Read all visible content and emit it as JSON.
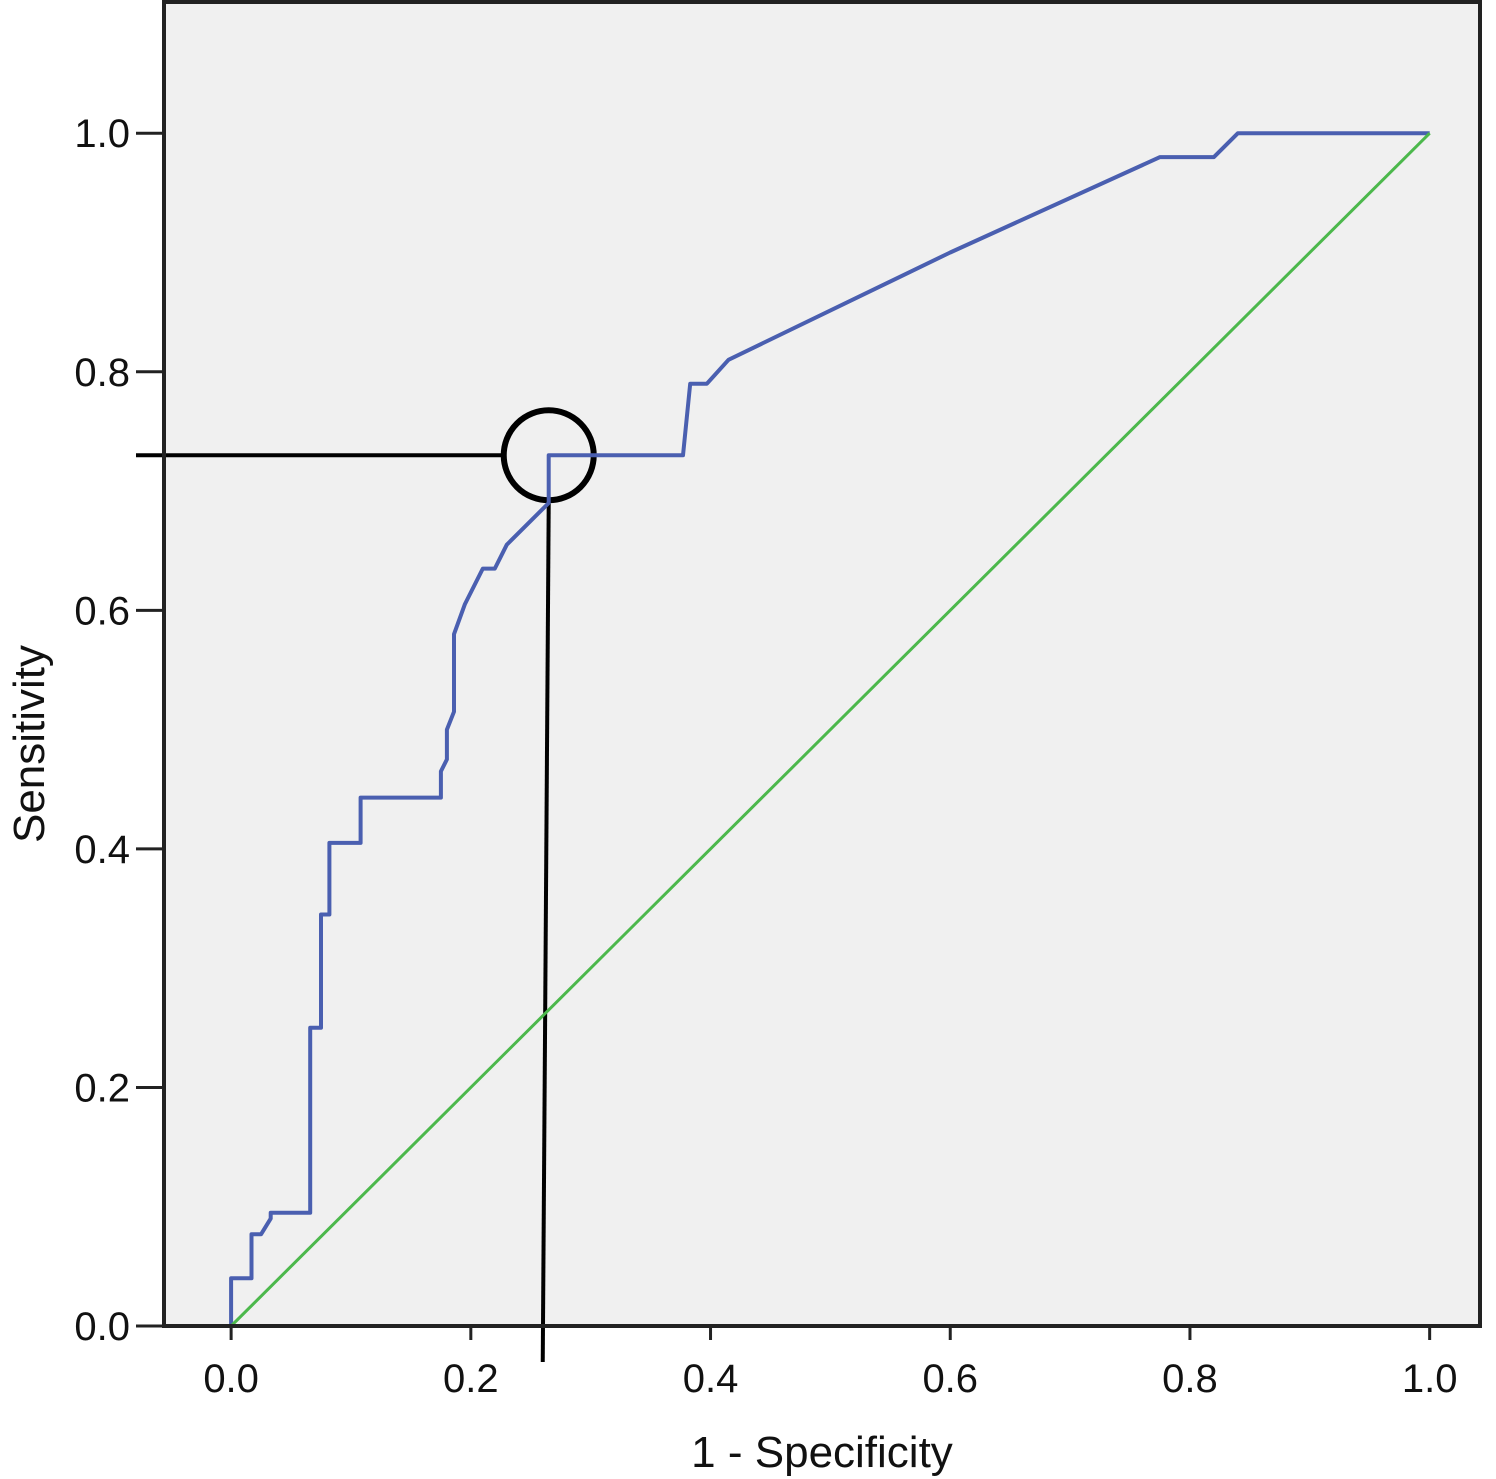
{
  "chart_data": {
    "type": "line",
    "title": "",
    "xlabel": "1 - Specificity",
    "ylabel": "Sensitivity",
    "xlim": [
      -0.056,
      1.042
    ],
    "ylim": [
      0,
      1.11
    ],
    "x_ticks": [
      "0.0",
      "0.2",
      "0.4",
      "0.6",
      "0.8",
      "1.0"
    ],
    "y_ticks": [
      "0.0",
      "0.2",
      "0.4",
      "0.6",
      "0.8",
      "1.0"
    ],
    "grid": false,
    "background": "#f0f0f0",
    "series": [
      {
        "color": "#4a5fb0",
        "points": [
          [
            0.0,
            0.0
          ],
          [
            0.0,
            0.04
          ],
          [
            0.017,
            0.04
          ],
          [
            0.017,
            0.077
          ],
          [
            0.025,
            0.077
          ],
          [
            0.033,
            0.09
          ],
          [
            0.033,
            0.095
          ],
          [
            0.066,
            0.095
          ],
          [
            0.066,
            0.25
          ],
          [
            0.075,
            0.25
          ],
          [
            0.075,
            0.345
          ],
          [
            0.082,
            0.345
          ],
          [
            0.082,
            0.405
          ],
          [
            0.108,
            0.405
          ],
          [
            0.108,
            0.443
          ],
          [
            0.175,
            0.443
          ],
          [
            0.175,
            0.465
          ],
          [
            0.18,
            0.475
          ],
          [
            0.18,
            0.5
          ],
          [
            0.186,
            0.515
          ],
          [
            0.186,
            0.58
          ],
          [
            0.195,
            0.605
          ],
          [
            0.21,
            0.635
          ],
          [
            0.22,
            0.635
          ],
          [
            0.23,
            0.655
          ],
          [
            0.265,
            0.69
          ],
          [
            0.265,
            0.73
          ],
          [
            0.377,
            0.73
          ],
          [
            0.383,
            0.79
          ],
          [
            0.397,
            0.79
          ],
          [
            0.415,
            0.81
          ],
          [
            0.6,
            0.9
          ],
          [
            0.775,
            0.98
          ],
          [
            0.82,
            0.98
          ],
          [
            0.84,
            1.0
          ],
          [
            1.0,
            1.0
          ]
        ]
      },
      {
        "color": "#4cb84c",
        "points": [
          [
            0.0,
            0.0
          ],
          [
            1.0,
            1.0
          ]
        ]
      }
    ],
    "annotations": {
      "circle_center": [
        0.265,
        0.73
      ],
      "reference_line_y": 0.73,
      "reference_line_x": 0.26
    }
  }
}
